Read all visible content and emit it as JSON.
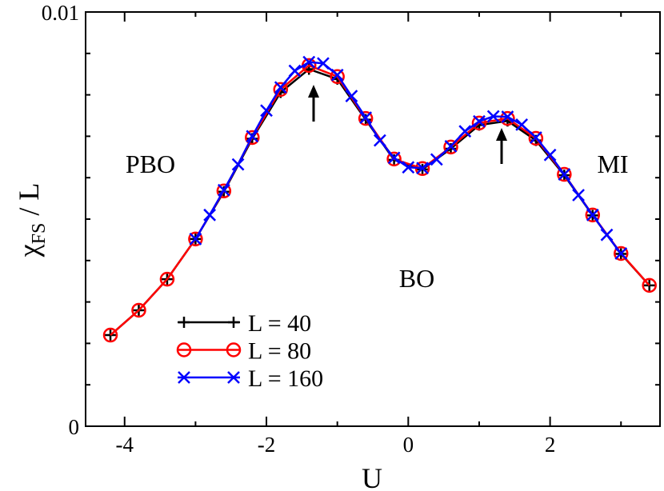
{
  "chart_data": {
    "type": "line",
    "xlabel": "U",
    "ylabel": {
      "main": "χ",
      "sub": "FS",
      "rest": " / L"
    },
    "xlim": [
      -4.55,
      3.55
    ],
    "ylim": [
      0,
      0.01
    ],
    "xticks": [
      -4,
      -2,
      0,
      2
    ],
    "xminor": [
      -3,
      -1,
      1,
      3
    ],
    "yticks": [
      0,
      0.01
    ],
    "yminor": [
      0.001,
      0.002,
      0.003,
      0.004,
      0.005,
      0.006,
      0.007,
      0.008,
      0.009
    ],
    "annotations": [
      "PBO",
      "MI",
      "BO"
    ],
    "series": [
      {
        "name": "L = 40",
        "color": "#000000",
        "marker": "plus",
        "x": [
          -4.2,
          -3.8,
          -3.4,
          -3.0,
          -2.6,
          -2.2,
          -1.8,
          -1.4,
          -1.0,
          -0.6,
          -0.2,
          0.2,
          0.6,
          1.0,
          1.4,
          1.8,
          2.2,
          2.6,
          3.0,
          3.4
        ],
        "values": [
          0.0022,
          0.0028,
          0.00355,
          0.00452,
          0.00566,
          0.00694,
          0.00806,
          0.00862,
          0.00838,
          0.0074,
          0.00643,
          0.0062,
          0.0067,
          0.00727,
          0.00737,
          0.0069,
          0.00606,
          0.00509,
          0.00416,
          0.0034
        ]
      },
      {
        "name": "L = 80",
        "color": "#ff0000",
        "marker": "circle",
        "x": [
          -4.2,
          -3.8,
          -3.4,
          -3.0,
          -2.6,
          -2.2,
          -1.8,
          -1.4,
          -1.0,
          -0.6,
          -0.2,
          0.2,
          0.6,
          1.0,
          1.4,
          1.8,
          2.2,
          2.6,
          3.0,
          3.4
        ],
        "values": [
          0.0022,
          0.0028,
          0.00355,
          0.00452,
          0.00568,
          0.00697,
          0.00813,
          0.00871,
          0.00844,
          0.00743,
          0.00645,
          0.00622,
          0.00674,
          0.00732,
          0.00743,
          0.00695,
          0.00608,
          0.0051,
          0.00417,
          0.0034
        ]
      },
      {
        "name": "L = 160",
        "color": "#0000ff",
        "marker": "cross",
        "x": [
          -3.0,
          -2.8,
          -2.6,
          -2.4,
          -2.2,
          -2.0,
          -1.8,
          -1.6,
          -1.4,
          -1.2,
          -1.0,
          -0.8,
          -0.6,
          -0.4,
          -0.2,
          0.0,
          0.2,
          0.4,
          0.6,
          0.8,
          1.0,
          1.2,
          1.4,
          1.6,
          1.8,
          2.0,
          2.2,
          2.4,
          2.6,
          2.8,
          3.0
        ],
        "values": [
          0.00452,
          0.0051,
          0.0057,
          0.00632,
          0.007,
          0.00762,
          0.00818,
          0.00858,
          0.00879,
          0.00876,
          0.00848,
          0.00797,
          0.00745,
          0.0069,
          0.00648,
          0.00625,
          0.00623,
          0.00644,
          0.00676,
          0.00712,
          0.00736,
          0.00748,
          0.00747,
          0.00728,
          0.00697,
          0.00655,
          0.00608,
          0.00558,
          0.0051,
          0.00462,
          0.00417
        ]
      }
    ]
  }
}
